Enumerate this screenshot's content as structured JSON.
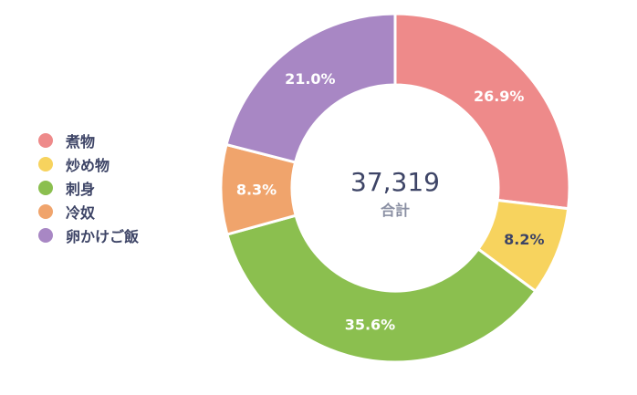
{
  "chart_data": {
    "type": "pie",
    "variant": "donut",
    "categories": [
      "煮物",
      "炒め物",
      "刺身",
      "冷奴",
      "卵かけご飯"
    ],
    "values": [
      26.9,
      8.2,
      35.6,
      8.3,
      21.0
    ],
    "value_labels": [
      "26.9%",
      "8.2%",
      "35.6%",
      "8.3%",
      "21.0%"
    ],
    "colors": [
      "#ee8a8a",
      "#f7d35e",
      "#8bbf4f",
      "#f0a46c",
      "#a887c4"
    ],
    "label_colors": [
      "#ffffff",
      "#3d4466",
      "#ffffff",
      "#ffffff",
      "#ffffff"
    ],
    "center_total": "37,319",
    "center_label": "合計",
    "legend_position": "left"
  }
}
